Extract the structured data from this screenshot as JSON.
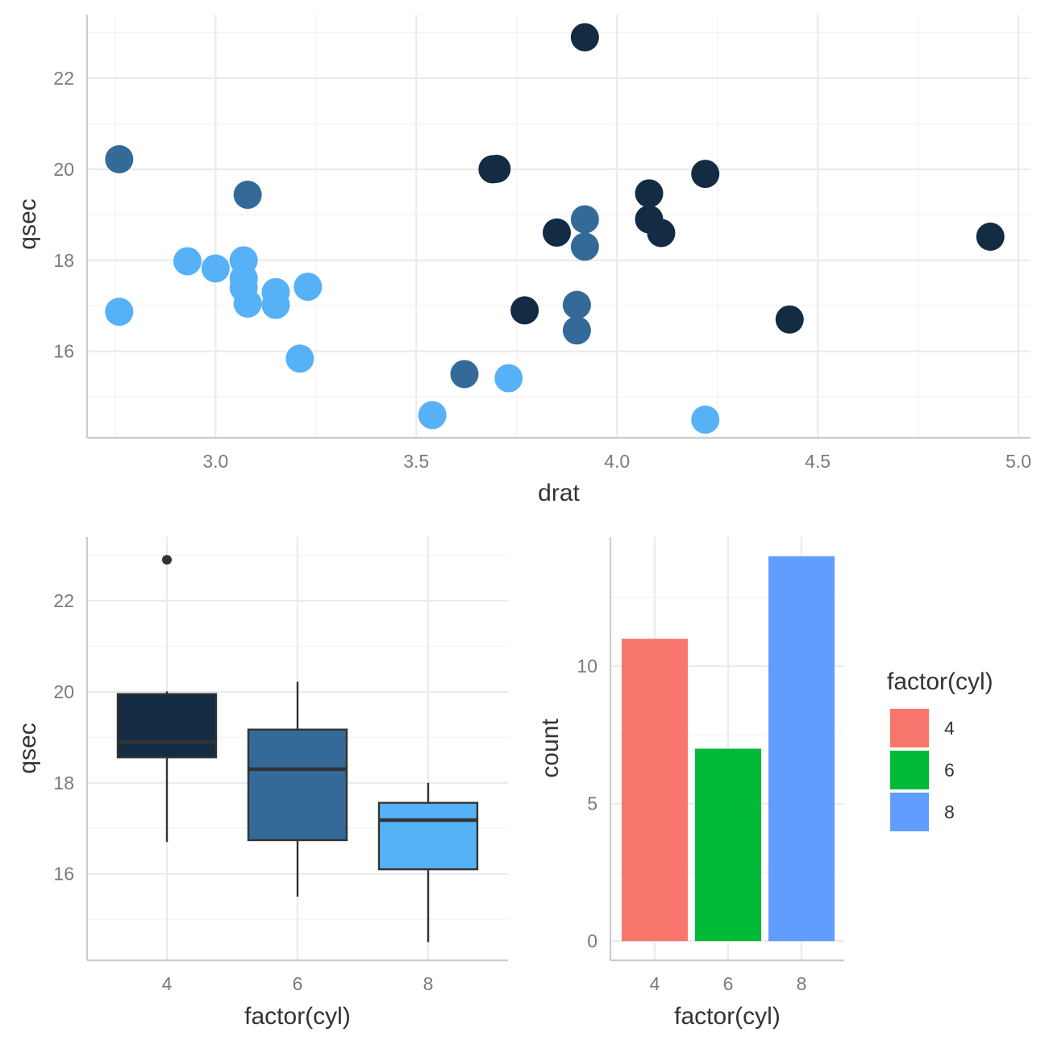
{
  "chart_data": [
    {
      "type": "scatter",
      "xlabel": "drat",
      "ylabel": "qsec",
      "xlim": [
        2.68,
        5.03
      ],
      "ylim": [
        14.1,
        23.4
      ],
      "x_ticks": [
        "3.0",
        "3.5",
        "4.0",
        "4.5",
        "5.0"
      ],
      "y_ticks": [
        "16",
        "18",
        "20",
        "22"
      ],
      "color_by": "cyl",
      "colors": {
        "4": "#132b43",
        "6": "#336a98",
        "8": "#56b1f7"
      },
      "series": [
        {
          "name": "4",
          "points": [
            [
              3.85,
              18.61
            ],
            [
              3.69,
              20.0
            ],
            [
              3.92,
              22.9
            ],
            [
              4.08,
              19.47
            ],
            [
              4.93,
              18.52
            ],
            [
              4.22,
              19.9
            ],
            [
              3.7,
              20.01
            ],
            [
              4.08,
              18.9
            ],
            [
              4.43,
              16.7
            ],
            [
              3.77,
              16.9
            ],
            [
              4.11,
              18.6
            ]
          ]
        },
        {
          "name": "6",
          "points": [
            [
              3.9,
              16.46
            ],
            [
              3.9,
              17.02
            ],
            [
              3.08,
              19.44
            ],
            [
              2.76,
              20.22
            ],
            [
              3.92,
              18.3
            ],
            [
              3.92,
              18.9
            ],
            [
              3.62,
              15.5
            ]
          ]
        },
        {
          "name": "8",
          "points": [
            [
              3.15,
              17.02
            ],
            [
              3.21,
              15.84
            ],
            [
              3.07,
              17.4
            ],
            [
              3.07,
              17.6
            ],
            [
              3.07,
              18.0
            ],
            [
              2.93,
              17.98
            ],
            [
              3.0,
              17.82
            ],
            [
              3.23,
              17.42
            ],
            [
              2.76,
              16.87
            ],
            [
              3.15,
              17.3
            ],
            [
              3.08,
              17.05
            ],
            [
              4.22,
              14.5
            ],
            [
              3.54,
              14.6
            ],
            [
              3.73,
              15.41
            ]
          ]
        }
      ]
    },
    {
      "type": "box",
      "xlabel": "factor(cyl)",
      "ylabel": "qsec",
      "ylim": [
        14.1,
        23.4
      ],
      "categories": [
        "4",
        "6",
        "8"
      ],
      "y_ticks": [
        "16",
        "18",
        "20",
        "22"
      ],
      "boxes": [
        {
          "name": "4",
          "min": 16.7,
          "q1": 18.56,
          "median": 18.9,
          "q3": 19.95,
          "max": 20.01,
          "outliers": [
            22.9
          ],
          "color": "#132b43"
        },
        {
          "name": "6",
          "min": 15.5,
          "q1": 16.74,
          "median": 18.3,
          "q3": 19.17,
          "max": 20.22,
          "outliers": [],
          "color": "#336a98"
        },
        {
          "name": "8",
          "min": 14.5,
          "q1": 16.1,
          "median": 17.18,
          "q3": 17.56,
          "max": 18.0,
          "outliers": [],
          "color": "#56b1f7"
        }
      ]
    },
    {
      "type": "bar",
      "xlabel": "factor(cyl)",
      "ylabel": "count",
      "ylim": [
        -0.7,
        14.7
      ],
      "categories": [
        "4",
        "6",
        "8"
      ],
      "values": [
        11,
        7,
        14
      ],
      "y_ticks": [
        "0",
        "5",
        "10"
      ],
      "colors": [
        "#f8766d",
        "#00ba38",
        "#619cff"
      ],
      "legend": {
        "title": "factor(cyl)",
        "position": "right",
        "entries": [
          "4",
          "6",
          "8"
        ]
      }
    }
  ]
}
